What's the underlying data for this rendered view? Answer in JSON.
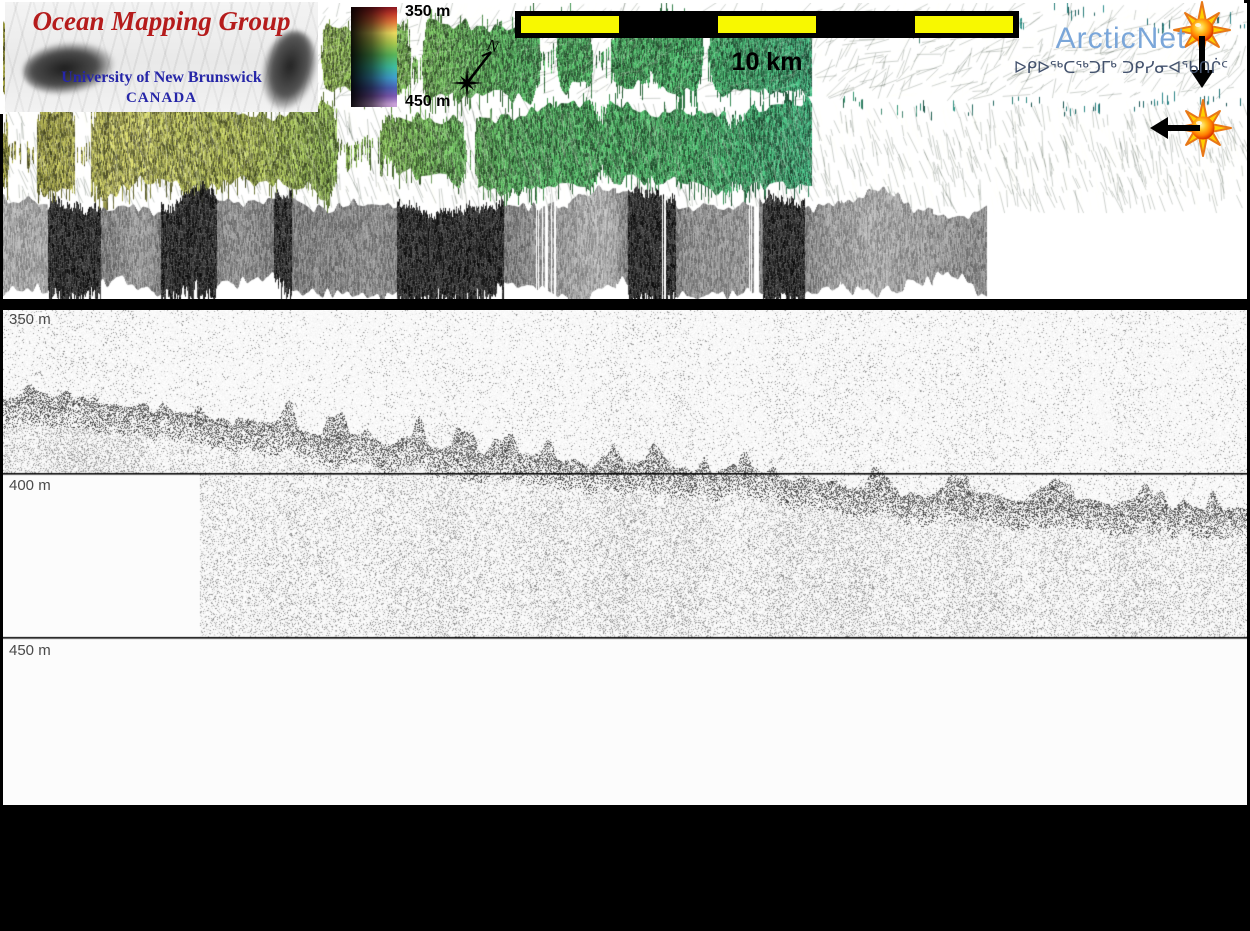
{
  "top_panel": {
    "icons": {
      "sun_down": "sun-with-down-arrow-icon",
      "sun_left": "sun-with-left-arrow-icon"
    }
  },
  "echogram": {
    "label_350": "350 m",
    "label_400": "400 m",
    "label_450": "450 m"
  },
  "footer": {
    "logo": {
      "title": "Ocean Mapping Group",
      "institution": "University of New Brunswick",
      "country": "CANADA"
    },
    "colorbar": {
      "top_label": "350 m",
      "bottom_label": "450 m"
    },
    "compass": {
      "north_label": "N",
      "icon": "north-arrow-icon"
    },
    "scalebar": {
      "label": "10 km",
      "segments": [
        "#F8F800",
        "#000000",
        "#F8F800",
        "#000000",
        "#F8F800"
      ]
    },
    "arcticnet": {
      "wordmark": "ArcticNet",
      "inuktitut": "ᐅᑭᐅᖅᑕᖅᑐᒥᒃ ᑐᑭᓯᓂᐊᖃᑎᒌᑦ"
    }
  },
  "colors": {
    "arcticnet_blue": "#7AA6D9",
    "inuktitut_blue": "#44536E",
    "logo_red": "#B51C1C",
    "logo_blue": "#2626A8",
    "scalebar_yellow": "#F8F800",
    "sun_yellow": "#FFCF00",
    "swath_left_olive": "#8A8A3C",
    "swath_mid_green": "#3F9858",
    "swath_right_teal": "#2E8A8F"
  }
}
